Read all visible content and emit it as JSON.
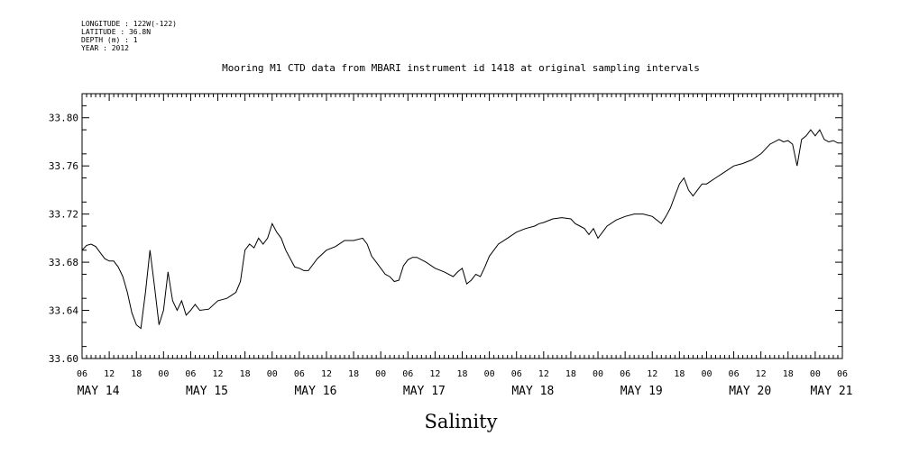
{
  "meta": [
    "LONGITUDE : 122W(-122)",
    "LATITUDE : 36.8N",
    "DEPTH (m) : 1",
    "YEAR : 2012"
  ],
  "chart_data": {
    "type": "line",
    "title": "Mooring M1 CTD data from MBARI instrument id 1418 at original sampling intervals",
    "xlabel": "",
    "ylabel": "",
    "variable_label": "Salinity",
    "xlim": [
      "2012-05-14T06:00",
      "2012-05-21T06:00"
    ],
    "ylim": [
      33.6,
      33.82
    ],
    "yticks": [
      "33.60",
      "33.64",
      "33.68",
      "33.72",
      "33.76",
      "33.80"
    ],
    "hour_ticks": [
      "06",
      "12",
      "18",
      "00",
      "06",
      "12",
      "18",
      "00",
      "06",
      "12",
      "18",
      "00",
      "06",
      "12",
      "18",
      "00",
      "06",
      "12",
      "18",
      "00",
      "06",
      "12",
      "18",
      "00",
      "06",
      "12",
      "18",
      "00",
      "06"
    ],
    "day_labels": [
      "MAY 14",
      "MAY 15",
      "MAY 16",
      "MAY 17",
      "MAY 18",
      "MAY 19",
      "MAY 20",
      "MAY 21"
    ],
    "grid": false,
    "color": "#000000",
    "series": [
      {
        "x": [
          "2012-05-14T06:00",
          "2012-05-14T07:00",
          "2012-05-14T08:00",
          "2012-05-14T09:00",
          "2012-05-14T10:00",
          "2012-05-14T11:00",
          "2012-05-14T12:00",
          "2012-05-14T13:00",
          "2012-05-14T14:00",
          "2012-05-14T15:00",
          "2012-05-14T16:00",
          "2012-05-14T17:00",
          "2012-05-14T18:00",
          "2012-05-14T19:00",
          "2012-05-14T20:00",
          "2012-05-14T21:00",
          "2012-05-14T22:00",
          "2012-05-14T23:00",
          "2012-05-15T00:00",
          "2012-05-15T01:00",
          "2012-05-15T02:00",
          "2012-05-15T03:00",
          "2012-05-15T04:00",
          "2012-05-15T05:00",
          "2012-05-15T06:00",
          "2012-05-15T07:00",
          "2012-05-15T08:00",
          "2012-05-15T10:00",
          "2012-05-15T12:00",
          "2012-05-15T14:00",
          "2012-05-15T16:00",
          "2012-05-15T17:00",
          "2012-05-15T18:00",
          "2012-05-15T19:00",
          "2012-05-15T20:00",
          "2012-05-15T21:00",
          "2012-05-15T22:00",
          "2012-05-15T23:00",
          "2012-05-16T00:00",
          "2012-05-16T01:00",
          "2012-05-16T02:00",
          "2012-05-16T03:00",
          "2012-05-16T04:00",
          "2012-05-16T05:00",
          "2012-05-16T06:00",
          "2012-05-16T07:00",
          "2012-05-16T08:00",
          "2012-05-16T10:00",
          "2012-05-16T12:00",
          "2012-05-16T14:00",
          "2012-05-16T16:00",
          "2012-05-16T18:00",
          "2012-05-16T20:00",
          "2012-05-16T21:00",
          "2012-05-16T22:00",
          "2012-05-16T23:00",
          "2012-05-17T00:00",
          "2012-05-17T01:00",
          "2012-05-17T02:00",
          "2012-05-17T03:00",
          "2012-05-17T04:00",
          "2012-05-17T05:00",
          "2012-05-17T06:00",
          "2012-05-17T07:00",
          "2012-05-17T08:00",
          "2012-05-17T10:00",
          "2012-05-17T12:00",
          "2012-05-17T14:00",
          "2012-05-17T16:00",
          "2012-05-17T17:00",
          "2012-05-17T18:00",
          "2012-05-17T19:00",
          "2012-05-17T20:00",
          "2012-05-17T21:00",
          "2012-05-17T22:00",
          "2012-05-17T23:00",
          "2012-05-18T00:00",
          "2012-05-18T01:00",
          "2012-05-18T02:00",
          "2012-05-18T04:00",
          "2012-05-18T06:00",
          "2012-05-18T08:00",
          "2012-05-18T10:00",
          "2012-05-18T11:00",
          "2012-05-18T12:00",
          "2012-05-18T14:00",
          "2012-05-18T16:00",
          "2012-05-18T18:00",
          "2012-05-18T19:00",
          "2012-05-18T20:00",
          "2012-05-18T21:00",
          "2012-05-18T22:00",
          "2012-05-18T23:00",
          "2012-05-19T00:00",
          "2012-05-19T01:00",
          "2012-05-19T02:00",
          "2012-05-19T04:00",
          "2012-05-19T06:00",
          "2012-05-19T08:00",
          "2012-05-19T10:00",
          "2012-05-19T12:00",
          "2012-05-19T14:00",
          "2012-05-19T15:00",
          "2012-05-19T16:00",
          "2012-05-19T17:00",
          "2012-05-19T18:00",
          "2012-05-19T19:00",
          "2012-05-19T20:00",
          "2012-05-19T21:00",
          "2012-05-19T22:00",
          "2012-05-19T23:00",
          "2012-05-20T00:00",
          "2012-05-20T02:00",
          "2012-05-20T04:00",
          "2012-05-20T06:00",
          "2012-05-20T08:00",
          "2012-05-20T10:00",
          "2012-05-20T12:00",
          "2012-05-20T14:00",
          "2012-05-20T16:00",
          "2012-05-20T17:00",
          "2012-05-20T18:00",
          "2012-05-20T19:00",
          "2012-05-20T20:00",
          "2012-05-20T21:00",
          "2012-05-20T22:00",
          "2012-05-20T23:00",
          "2012-05-21T00:00",
          "2012-05-21T01:00",
          "2012-05-21T02:00",
          "2012-05-21T03:00",
          "2012-05-21T04:00",
          "2012-05-21T05:00",
          "2012-05-21T06:00"
        ],
        "y": [
          33.69,
          33.694,
          33.695,
          33.693,
          33.688,
          33.683,
          33.681,
          33.681,
          33.676,
          33.668,
          33.655,
          33.638,
          33.628,
          33.625,
          33.655,
          33.69,
          33.66,
          33.628,
          33.64,
          33.672,
          33.648,
          33.64,
          33.648,
          33.636,
          33.64,
          33.645,
          33.64,
          33.641,
          33.648,
          33.65,
          33.655,
          33.664,
          33.69,
          33.695,
          33.692,
          33.7,
          33.695,
          33.7,
          33.712,
          33.705,
          33.7,
          33.69,
          33.683,
          33.676,
          33.675,
          33.673,
          33.673,
          33.683,
          33.69,
          33.693,
          33.698,
          33.698,
          33.7,
          33.695,
          33.685,
          33.68,
          33.675,
          33.67,
          33.668,
          33.664,
          33.665,
          33.677,
          33.682,
          33.684,
          33.684,
          33.68,
          33.675,
          33.672,
          33.668,
          33.672,
          33.675,
          33.662,
          33.665,
          33.67,
          33.668,
          33.676,
          33.685,
          33.69,
          33.695,
          33.7,
          33.705,
          33.708,
          33.71,
          33.712,
          33.713,
          33.716,
          33.717,
          33.716,
          33.712,
          33.71,
          33.708,
          33.703,
          33.708,
          33.7,
          33.705,
          33.71,
          33.715,
          33.718,
          33.72,
          33.72,
          33.718,
          33.712,
          33.718,
          33.725,
          33.735,
          33.745,
          33.75,
          33.74,
          33.735,
          33.74,
          33.745,
          33.745,
          33.75,
          33.755,
          33.76,
          33.762,
          33.765,
          33.77,
          33.778,
          33.782,
          33.78,
          33.781,
          33.778,
          33.76,
          33.782,
          33.785,
          33.79,
          33.785,
          33.79,
          33.782,
          33.78,
          33.781,
          33.779,
          33.779
        ]
      }
    ]
  }
}
